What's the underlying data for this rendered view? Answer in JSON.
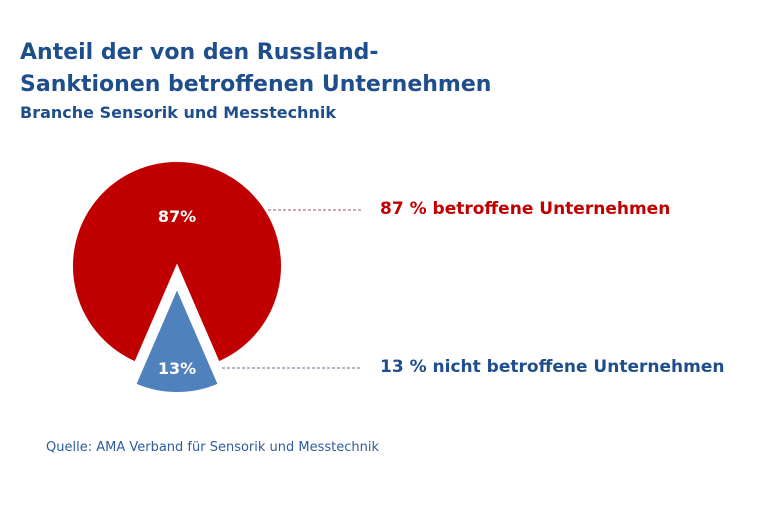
{
  "title_line1": "Anteil der von den Russland-",
  "title_line2": "Sanktionen betroffenen Unternehmen",
  "subtitle": "Branche Sensorik und Messtechnik",
  "source": "Quelle: AMA Verband für Sensorik und Messtechnik",
  "chart_data": {
    "type": "pie",
    "title": "Anteil der von den Russland-Sanktionen betroffenen Unternehmen",
    "subtitle": "Branche Sensorik und Messtechnik",
    "slices": [
      {
        "label": "87 % betroffene Unternehmen",
        "value": 87,
        "data_label": "87%",
        "color": "#c00000",
        "exploded": false
      },
      {
        "label": "13 % nicht betroffene Unternehmen",
        "value": 13,
        "data_label": "13%",
        "color": "#4f81bd",
        "exploded": true
      }
    ]
  }
}
